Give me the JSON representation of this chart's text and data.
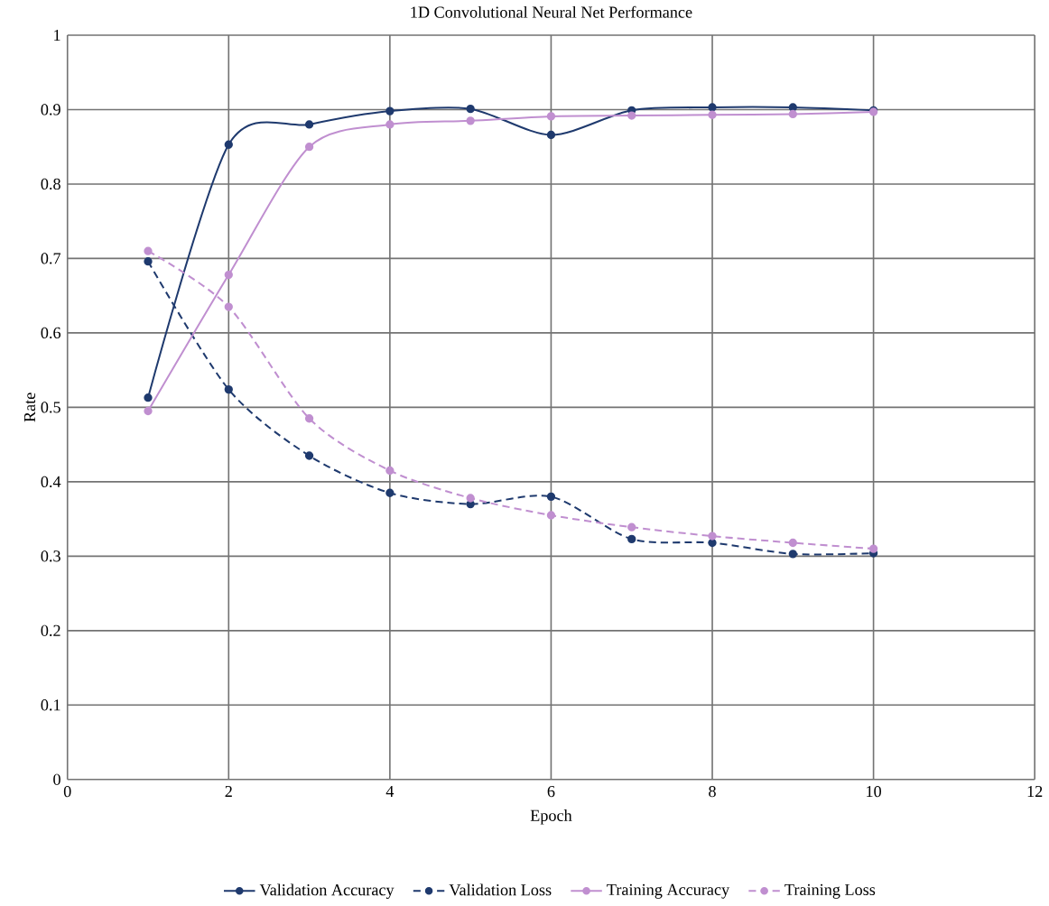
{
  "chart_data": {
    "type": "line",
    "title": "1D Convolutional Neural Net Performance",
    "xlabel": "Epoch",
    "ylabel": "Rate",
    "x": [
      1,
      2,
      3,
      4,
      5,
      6,
      7,
      8,
      9,
      10
    ],
    "series": [
      {
        "name": "Validation Accuracy",
        "color": "#1f3a6e",
        "line_style": "solid",
        "values": [
          0.513,
          0.853,
          0.88,
          0.898,
          0.901,
          0.866,
          0.899,
          0.903,
          0.903,
          0.899
        ]
      },
      {
        "name": "Validation Loss",
        "color": "#1f3a6e",
        "line_style": "dashed",
        "values": [
          0.696,
          0.524,
          0.435,
          0.385,
          0.37,
          0.38,
          0.323,
          0.318,
          0.303,
          0.304
        ]
      },
      {
        "name": "Training Accuracy",
        "color": "#c08fd0",
        "line_style": "solid",
        "values": [
          0.495,
          0.678,
          0.85,
          0.88,
          0.885,
          0.891,
          0.892,
          0.893,
          0.894,
          0.897
        ]
      },
      {
        "name": "Training Loss",
        "color": "#c08fd0",
        "line_style": "dashed",
        "values": [
          0.71,
          0.635,
          0.485,
          0.415,
          0.378,
          0.355,
          0.339,
          0.327,
          0.318,
          0.31
        ]
      }
    ],
    "marker": "circle",
    "grid": true,
    "legend": "bottom",
    "xlim": [
      0,
      12
    ],
    "xticks": [
      0,
      2,
      4,
      6,
      8,
      10,
      12
    ],
    "ylim": [
      0,
      1
    ],
    "yticks": [
      0,
      0.1,
      0.2,
      0.3,
      0.4,
      0.5,
      0.6,
      0.7,
      0.8,
      0.9,
      1
    ]
  }
}
